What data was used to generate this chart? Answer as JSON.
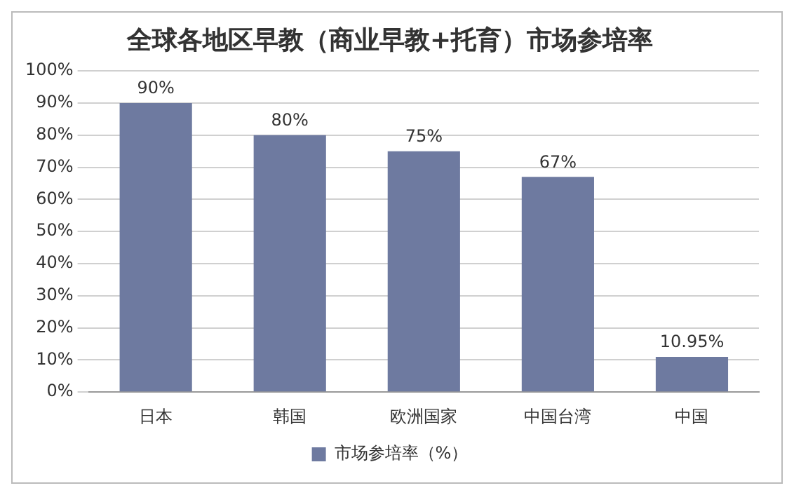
{
  "chart_data": {
    "type": "bar",
    "title": "全球各地区早教（商业早教+托育）市场参培率",
    "categories": [
      "日本",
      "韩国",
      "欧洲国家",
      "中国台湾",
      "中国"
    ],
    "series": [
      {
        "name": "市场参培率（%）",
        "color": "#6e7aa0",
        "values": [
          90,
          80,
          75,
          67,
          10.95
        ],
        "value_labels": [
          "90%",
          "80%",
          "75%",
          "67%",
          "10.95%"
        ]
      }
    ],
    "ylim": [
      0,
      100
    ],
    "yticks": [
      {
        "value": 0,
        "label": "0%"
      },
      {
        "value": 10,
        "label": "10%"
      },
      {
        "value": 20,
        "label": "20%"
      },
      {
        "value": 30,
        "label": "30%"
      },
      {
        "value": 40,
        "label": "40%"
      },
      {
        "value": 50,
        "label": "50%"
      },
      {
        "value": 60,
        "label": "60%"
      },
      {
        "value": 70,
        "label": "70%"
      },
      {
        "value": 80,
        "label": "80%"
      },
      {
        "value": 90,
        "label": "90%"
      },
      {
        "value": 100,
        "label": "100%"
      }
    ],
    "grid": "y",
    "legend": "bottom"
  }
}
